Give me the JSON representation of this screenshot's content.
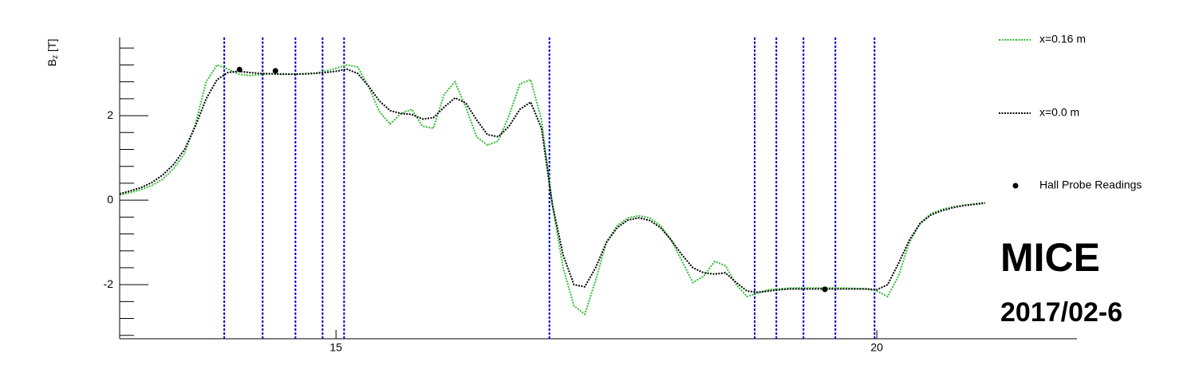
{
  "chart_data": {
    "type": "line",
    "y_label": {
      "main": "B",
      "sub": "z",
      "unit": "[T]"
    },
    "x": [
      13.0,
      13.1,
      13.2,
      13.3,
      13.4,
      13.5,
      13.6,
      13.7,
      13.8,
      13.9,
      14.0,
      14.1,
      14.2,
      14.3,
      14.4,
      14.5,
      14.6,
      14.7,
      14.8,
      14.9,
      15.0,
      15.1,
      15.2,
      15.3,
      15.4,
      15.5,
      15.6,
      15.7,
      15.8,
      15.9,
      16.0,
      16.1,
      16.2,
      16.3,
      16.4,
      16.5,
      16.6,
      16.7,
      16.8,
      16.9,
      17.0,
      17.1,
      17.2,
      17.3,
      17.4,
      17.5,
      17.6,
      17.7,
      17.8,
      17.9,
      18.0,
      18.1,
      18.2,
      18.3,
      18.4,
      18.5,
      18.6,
      18.7,
      18.8,
      18.9,
      19.0,
      19.1,
      19.2,
      19.3,
      19.4,
      19.5,
      19.6,
      19.7,
      19.8,
      19.9,
      20.0,
      20.1,
      20.2,
      20.3,
      20.4,
      20.5,
      20.6,
      20.7,
      20.8,
      20.9,
      21.0
    ],
    "series": [
      {
        "name": "x=0.16 m",
        "color": "#33bb33",
        "values": [
          0.12,
          0.18,
          0.25,
          0.35,
          0.5,
          0.75,
          1.1,
          1.8,
          2.8,
          3.2,
          3.1,
          2.98,
          2.95,
          2.97,
          2.99,
          2.99,
          2.98,
          2.98,
          3.0,
          3.05,
          3.12,
          3.2,
          3.15,
          2.7,
          2.1,
          1.8,
          2.05,
          2.15,
          1.75,
          1.7,
          2.5,
          2.8,
          2.2,
          1.5,
          1.3,
          1.4,
          2.0,
          2.75,
          2.85,
          1.9,
          -0.1,
          -1.6,
          -2.5,
          -2.7,
          -1.9,
          -1.0,
          -0.6,
          -0.42,
          -0.37,
          -0.42,
          -0.6,
          -0.95,
          -1.45,
          -1.95,
          -1.8,
          -1.45,
          -1.55,
          -2.0,
          -2.28,
          -2.2,
          -2.12,
          -2.1,
          -2.08,
          -2.08,
          -2.08,
          -2.08,
          -2.08,
          -2.08,
          -2.09,
          -2.1,
          -2.15,
          -2.28,
          -1.8,
          -1.0,
          -0.55,
          -0.32,
          -0.22,
          -0.16,
          -0.12,
          -0.09,
          -0.06
        ]
      },
      {
        "name": "x=0.0 m",
        "color": "#000000",
        "values": [
          0.15,
          0.22,
          0.3,
          0.42,
          0.6,
          0.85,
          1.2,
          1.75,
          2.4,
          2.85,
          3.02,
          3.05,
          3.02,
          3.0,
          2.99,
          2.98,
          2.98,
          2.99,
          3.0,
          3.02,
          3.05,
          3.1,
          3.0,
          2.7,
          2.35,
          2.12,
          2.05,
          2.03,
          1.92,
          1.95,
          2.2,
          2.42,
          2.3,
          1.9,
          1.55,
          1.5,
          1.75,
          2.15,
          2.32,
          1.7,
          -0.1,
          -1.3,
          -2.0,
          -2.05,
          -1.6,
          -1.0,
          -0.65,
          -0.47,
          -0.42,
          -0.48,
          -0.65,
          -0.95,
          -1.3,
          -1.6,
          -1.72,
          -1.75,
          -1.72,
          -1.95,
          -2.15,
          -2.18,
          -2.15,
          -2.12,
          -2.1,
          -2.1,
          -2.1,
          -2.1,
          -2.1,
          -2.1,
          -2.1,
          -2.1,
          -2.12,
          -2.0,
          -1.5,
          -0.95,
          -0.55,
          -0.35,
          -0.25,
          -0.18,
          -0.13,
          -0.1,
          -0.07
        ]
      }
    ],
    "points": {
      "name": "Hall Probe Readings",
      "color": "#000000",
      "x": [
        14.108,
        14.44,
        19.52
      ],
      "y": [
        3.09,
        3.06,
        -2.11
      ]
    },
    "vlines": {
      "color": "#0000cc",
      "x": [
        13.967,
        14.322,
        14.625,
        14.876,
        15.075,
        16.973,
        18.871,
        19.071,
        19.322,
        19.617,
        19.979
      ]
    },
    "xlim": [
      13.0,
      21.85
    ],
    "ylim": [
      -3.28,
      3.85
    ],
    "xticks": [
      15,
      20
    ],
    "yticks": [
      -2,
      0,
      2
    ],
    "yminorticks": [
      -3.2,
      -2.8,
      -2.4,
      -1.6,
      -1.2,
      -0.8,
      -0.4,
      0.4,
      0.8,
      1.2,
      1.6,
      2.4,
      2.8,
      3.2,
      3.6
    ],
    "annotations": [
      "MICE",
      "2017/02-6"
    ]
  }
}
